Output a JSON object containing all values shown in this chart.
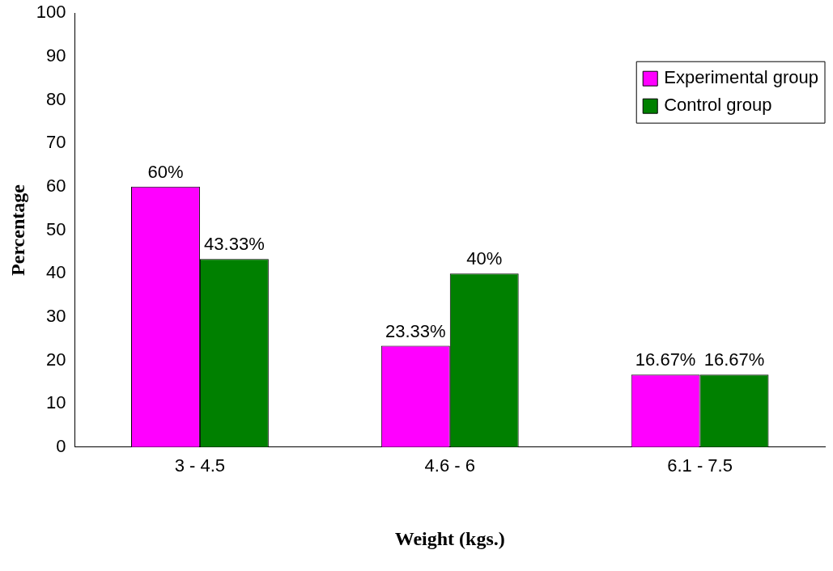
{
  "chart_data": {
    "type": "bar",
    "categories": [
      "3 - 4.5",
      "4.6 - 6",
      "6.1 - 7.5"
    ],
    "xlabel": "Weight (kgs.)",
    "ylabel": "Percentage",
    "ylim": [
      0,
      100
    ],
    "yticks": [
      0,
      10,
      20,
      30,
      40,
      50,
      60,
      70,
      80,
      90,
      100
    ],
    "legend": "top right",
    "series": [
      {
        "name": "Experimental group",
        "color": "#ff00ff",
        "values": [
          60,
          23.33,
          16.67
        ],
        "value_labels": [
          "60%",
          "23.33%",
          "16.67%"
        ]
      },
      {
        "name": "Control group",
        "color": "#008000",
        "values": [
          43.33,
          40,
          16.67
        ],
        "value_labels": [
          "43.33%",
          "40%",
          "16.67%"
        ]
      }
    ]
  }
}
